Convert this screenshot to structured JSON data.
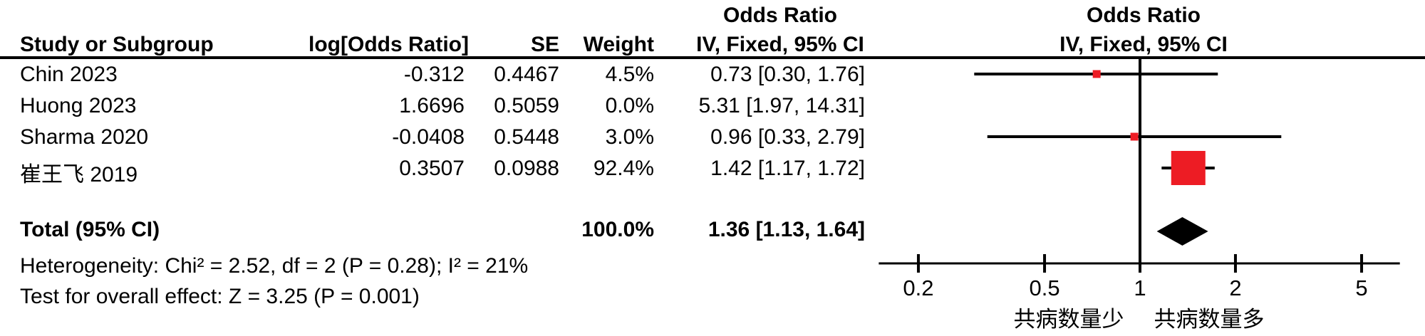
{
  "table_header": {
    "study": "Study or Subgroup",
    "log_or": "log[Odds Ratio]",
    "se": "SE",
    "weight": "Weight",
    "or_title": "Odds Ratio",
    "method": "IV, Fixed, 95% CI"
  },
  "plot_header": {
    "or_title": "Odds Ratio",
    "method": "IV, Fixed, 95% CI"
  },
  "chart_data": {
    "type": "forest",
    "x_scale": "log",
    "x_ticks": [
      "0.2",
      "0.5",
      "1",
      "2",
      "5"
    ],
    "x_range": [
      0.15,
      6.6
    ],
    "vertical_reference": 1,
    "axis_caption_left": "共病数量少",
    "axis_caption_right": "共病数量多",
    "studies": [
      {
        "name": "Chin 2023",
        "log_or": "-0.312",
        "se": "0.4467",
        "weight": "4.5%",
        "weight_value": 4.5,
        "ci_text": "0.73 [0.30, 1.76]",
        "or": 0.73,
        "ci_low": 0.3,
        "ci_high": 1.76,
        "plotted": true
      },
      {
        "name": "Huong 2023",
        "log_or": "1.6696",
        "se": "0.5059",
        "weight": "0.0%",
        "weight_value": 0.0,
        "ci_text": "5.31 [1.97, 14.31]",
        "or": 5.31,
        "ci_low": 1.97,
        "ci_high": 14.31,
        "plotted": false
      },
      {
        "name": "Sharma 2020",
        "log_or": "-0.0408",
        "se": "0.5448",
        "weight": "3.0%",
        "weight_value": 3.0,
        "ci_text": "0.96 [0.33, 2.79]",
        "or": 0.96,
        "ci_low": 0.33,
        "ci_high": 2.79,
        "plotted": true
      },
      {
        "name": "崔王飞 2019",
        "log_or": "0.3507",
        "se": "0.0988",
        "weight": "92.4%",
        "weight_value": 92.4,
        "ci_text": "1.42 [1.17, 1.72]",
        "or": 1.42,
        "ci_low": 1.17,
        "ci_high": 1.72,
        "plotted": true
      }
    ],
    "total": {
      "label": "Total (95% CI)",
      "weight": "100.0%",
      "ci_text": "1.36 [1.13, 1.64]",
      "or": 1.36,
      "ci_low": 1.13,
      "ci_high": 1.64
    }
  },
  "footer": {
    "heterogeneity": "Heterogeneity: Chi² = 2.52, df = 2 (P = 0.28); I² = 21%",
    "overall_effect": "Test for overall effect: Z = 3.25 (P = 0.001)"
  },
  "colors": {
    "study_marker": "#ED1C24",
    "diamond": "#000000",
    "line": "#000000"
  }
}
